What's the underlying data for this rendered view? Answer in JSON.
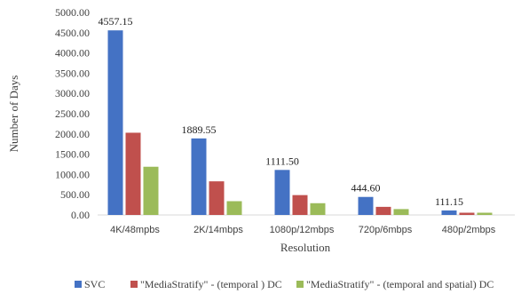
{
  "chart_data": {
    "type": "bar",
    "title": "",
    "xlabel": "Resolution",
    "ylabel": "Number of Days",
    "ylim": [
      0,
      5000
    ],
    "yticks": [
      "0.00",
      "500.00",
      "1000.00",
      "1500.00",
      "2000.00",
      "2500.00",
      "3000.00",
      "3500.00",
      "4000.00",
      "4500.00",
      "5000.00"
    ],
    "categories": [
      "4K/48mpbs",
      "2K/14mbps",
      "1080p/12mbps",
      "720p/6mbps",
      "480p/2mbps"
    ],
    "series": [
      {
        "name": "SVC",
        "color": "#4472C4",
        "values": [
          4557.15,
          1889.55,
          1111.5,
          444.6,
          111.15
        ]
      },
      {
        "name": "\"MediaStratify\" - (temporal ) DC",
        "color": "#C0504D",
        "values": [
          2030,
          830,
          490,
          200,
          55
        ]
      },
      {
        "name": "\"MediaStratify\" - (temporal and spatial) DC",
        "color": "#9BBB59",
        "values": [
          1190,
          340,
          290,
          145,
          55
        ]
      }
    ],
    "data_labels": [
      "4557.15",
      "1889.55",
      "1111.50",
      "444.60",
      "111.15"
    ],
    "legend_position": "bottom",
    "grid": false
  }
}
